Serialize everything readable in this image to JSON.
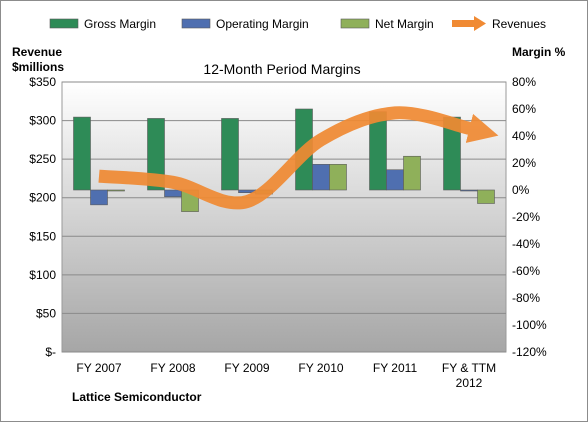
{
  "chart_data": {
    "type": "bar",
    "title": "12-Month Period Margins",
    "company": "Lattice Semiconductor",
    "y_left_label_line1": "Revenue",
    "y_left_label_line2": "$millions",
    "y_right_label": "Margin %",
    "categories": [
      "FY 2007",
      "FY 2008",
      "FY 2009",
      "FY 2010",
      "FY 2011",
      "FY & TTM 2012"
    ],
    "category_lines": [
      [
        "FY 2007"
      ],
      [
        "FY 2008"
      ],
      [
        "FY 2009"
      ],
      [
        "FY 2010"
      ],
      [
        "FY 2011"
      ],
      [
        "FY & TTM",
        "2012"
      ]
    ],
    "left_axis": {
      "min": 0,
      "max": 350,
      "step": 50,
      "ticks": [
        "$-",
        "$50",
        "$100",
        "$150",
        "$200",
        "$250",
        "$300",
        "$350"
      ]
    },
    "right_axis": {
      "min": -120,
      "max": 80,
      "step": 20,
      "ticks": [
        "-120%",
        "-100%",
        "-80%",
        "-60%",
        "-40%",
        "-20%",
        "0%",
        "20%",
        "40%",
        "60%",
        "80%"
      ]
    },
    "bar_series": [
      {
        "name": "Gross Margin",
        "color": "#2e8b57",
        "values": [
          54,
          53,
          53,
          60,
          58,
          54
        ]
      },
      {
        "name": "Operating Margin",
        "color": "#4f6fb0",
        "values": [
          -11,
          -5,
          -2,
          19,
          15,
          0
        ]
      },
      {
        "name": "Net Margin",
        "color": "#8fb05a",
        "values": [
          0,
          -16,
          -3,
          19,
          25,
          -10
        ]
      }
    ],
    "line_series": {
      "name": "Revenues",
      "color": "#f08a33",
      "values": [
        228,
        220,
        195,
        275,
        310,
        290
      ]
    },
    "legend": [
      "Gross Margin",
      "Operating Margin",
      "Net Margin",
      "Revenues"
    ],
    "legend_position": "top",
    "grid": true
  }
}
